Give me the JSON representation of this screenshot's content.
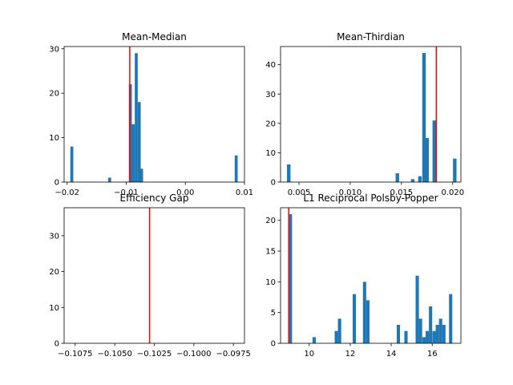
{
  "chart_data": [
    {
      "type": "bar",
      "title": "Mean-Median",
      "xlim": [
        -0.0205,
        0.01
      ],
      "ylim": [
        0,
        30.5
      ],
      "xticks": [
        {
          "value": -0.02,
          "label": "−0.02"
        },
        {
          "value": -0.01,
          "label": "−0.01"
        },
        {
          "value": 0.0,
          "label": "0.00"
        },
        {
          "value": 0.01,
          "label": "0.01"
        }
      ],
      "yticks": [
        {
          "value": 0,
          "label": "0"
        },
        {
          "value": 10,
          "label": "10"
        },
        {
          "value": 20,
          "label": "20"
        },
        {
          "value": 30,
          "label": "30"
        }
      ],
      "bar_color": "#1f77b4",
      "bar_width": 0.0005,
      "bars": [
        {
          "x": -0.0192,
          "value": 8
        },
        {
          "x": -0.0128,
          "value": 1
        },
        {
          "x": -0.0093,
          "value": 22
        },
        {
          "x": -0.0088,
          "value": 13
        },
        {
          "x": -0.0083,
          "value": 29
        },
        {
          "x": -0.0078,
          "value": 18
        },
        {
          "x": -0.0074,
          "value": 3
        },
        {
          "x": 0.0086,
          "value": 6
        }
      ],
      "vline": {
        "x": -0.0094,
        "color": "#ff0000"
      }
    },
    {
      "type": "bar",
      "title": "Mean-Thirdian",
      "xlim": [
        0.0032,
        0.0208
      ],
      "ylim": [
        0,
        46.2
      ],
      "xticks": [
        {
          "value": 0.005,
          "label": "0.005"
        },
        {
          "value": 0.01,
          "label": "0.010"
        },
        {
          "value": 0.015,
          "label": "0.015"
        },
        {
          "value": 0.02,
          "label": "0.020"
        }
      ],
      "yticks": [
        {
          "value": 0,
          "label": "0"
        },
        {
          "value": 10,
          "label": "10"
        },
        {
          "value": 20,
          "label": "20"
        },
        {
          "value": 30,
          "label": "30"
        },
        {
          "value": 40,
          "label": "40"
        }
      ],
      "bar_color": "#1f77b4",
      "bar_width": 0.00034,
      "bars": [
        {
          "x": 0.004,
          "value": 6
        },
        {
          "x": 0.0146,
          "value": 3
        },
        {
          "x": 0.0161,
          "value": 1
        },
        {
          "x": 0.0168,
          "value": 2
        },
        {
          "x": 0.0172,
          "value": 44
        },
        {
          "x": 0.0175,
          "value": 15
        },
        {
          "x": 0.0182,
          "value": 21
        },
        {
          "x": 0.0202,
          "value": 8
        }
      ],
      "vline": {
        "x": 0.0184,
        "color": "#ff0000"
      }
    },
    {
      "type": "bar",
      "title": "Efficiency Gap",
      "xlim": [
        -0.1082,
        -0.0968
      ],
      "ylim": [
        0,
        37.8
      ],
      "xticks": [
        {
          "value": -0.1075,
          "label": "−0.1075"
        },
        {
          "value": -0.105,
          "label": "−0.1050"
        },
        {
          "value": -0.1025,
          "label": "−0.1025"
        },
        {
          "value": -0.1,
          "label": "−0.1000"
        },
        {
          "value": -0.0975,
          "label": "−0.0975"
        }
      ],
      "yticks": [
        {
          "value": 0,
          "label": "0"
        },
        {
          "value": 10,
          "label": "10"
        },
        {
          "value": 20,
          "label": "20"
        },
        {
          "value": 30,
          "label": "30"
        }
      ],
      "bar_color": "#1f77b4",
      "bar_width": 0.0002,
      "bars": [],
      "vline": {
        "x": -0.1028,
        "color": "#ff0000"
      }
    },
    {
      "type": "bar",
      "title": "L1 Reciprocal Polsby-Popper",
      "xlim": [
        8.6,
        17.4
      ],
      "ylim": [
        0,
        22.05
      ],
      "xticks": [
        {
          "value": 10,
          "label": "10"
        },
        {
          "value": 12,
          "label": "12"
        },
        {
          "value": 14,
          "label": "14"
        },
        {
          "value": 16,
          "label": "16"
        }
      ],
      "yticks": [
        {
          "value": 0,
          "label": "0"
        },
        {
          "value": 5,
          "label": "5"
        },
        {
          "value": 10,
          "label": "10"
        },
        {
          "value": 15,
          "label": "15"
        },
        {
          "value": 20,
          "label": "20"
        }
      ],
      "bar_color": "#1f77b4",
      "bar_width": 0.16,
      "bars": [
        {
          "x": 9.08,
          "value": 21
        },
        {
          "x": 10.24,
          "value": 1
        },
        {
          "x": 11.32,
          "value": 2
        },
        {
          "x": 11.48,
          "value": 4
        },
        {
          "x": 12.2,
          "value": 8
        },
        {
          "x": 12.7,
          "value": 10
        },
        {
          "x": 12.86,
          "value": 7
        },
        {
          "x": 14.35,
          "value": 3
        },
        {
          "x": 14.72,
          "value": 2
        },
        {
          "x": 15.27,
          "value": 11
        },
        {
          "x": 15.43,
          "value": 4
        },
        {
          "x": 15.6,
          "value": 1
        },
        {
          "x": 15.76,
          "value": 2
        },
        {
          "x": 15.92,
          "value": 6
        },
        {
          "x": 16.09,
          "value": 2
        },
        {
          "x": 16.25,
          "value": 3
        },
        {
          "x": 16.41,
          "value": 4
        },
        {
          "x": 16.57,
          "value": 3
        },
        {
          "x": 16.9,
          "value": 8
        }
      ],
      "vline": {
        "x": 9.0,
        "color": "#ff0000"
      }
    }
  ]
}
